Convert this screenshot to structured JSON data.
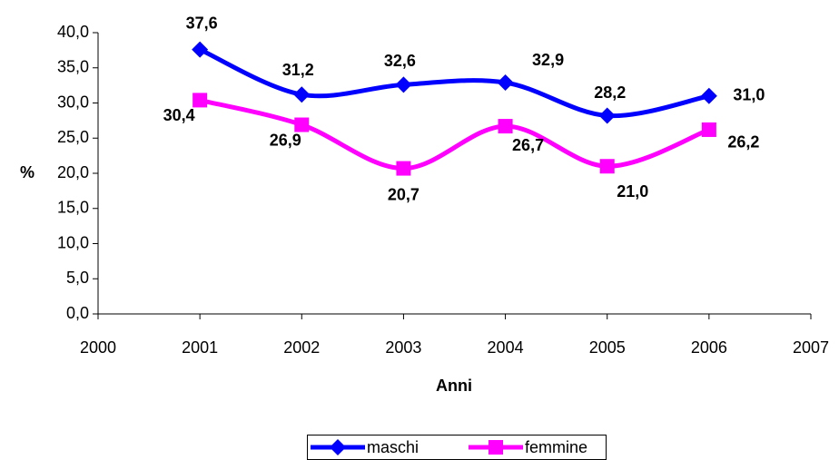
{
  "chart_data": {
    "type": "line",
    "x_label": "Anni",
    "y_label": "%",
    "x": [
      2001,
      2002,
      2003,
      2004,
      2005,
      2006
    ],
    "xlim": [
      2000,
      2007
    ],
    "xticks": [
      2000,
      2001,
      2002,
      2003,
      2004,
      2005,
      2006,
      2007
    ],
    "ylim": [
      0,
      40
    ],
    "yticks": [
      {
        "value": 0,
        "label": "0,0"
      },
      {
        "value": 5,
        "label": "5,0"
      },
      {
        "value": 10,
        "label": "10,0"
      },
      {
        "value": 15,
        "label": "15,0"
      },
      {
        "value": 20,
        "label": "20,0"
      },
      {
        "value": 25,
        "label": "25,0"
      },
      {
        "value": 30,
        "label": "30,0"
      },
      {
        "value": 35,
        "label": "35,0"
      },
      {
        "value": 40,
        "label": "40,0"
      }
    ],
    "grid": false,
    "smooth": true,
    "legend": "bottom",
    "series": [
      {
        "name": "maschi",
        "color": "#0000ff",
        "marker": "diamond",
        "values": [
          37.6,
          31.2,
          32.6,
          32.9,
          28.2,
          31.0
        ],
        "value_labels": [
          "37,6",
          "31,2",
          "32,6",
          "32,9",
          "28,2",
          "31,0"
        ]
      },
      {
        "name": "femmine",
        "color": "#ff00ff",
        "marker": "square",
        "values": [
          30.4,
          26.9,
          20.7,
          26.7,
          21.0,
          26.2
        ],
        "value_labels": [
          "30,4",
          "26,9",
          "20,7",
          "26,7",
          "21,0",
          "26,2"
        ]
      }
    ]
  }
}
